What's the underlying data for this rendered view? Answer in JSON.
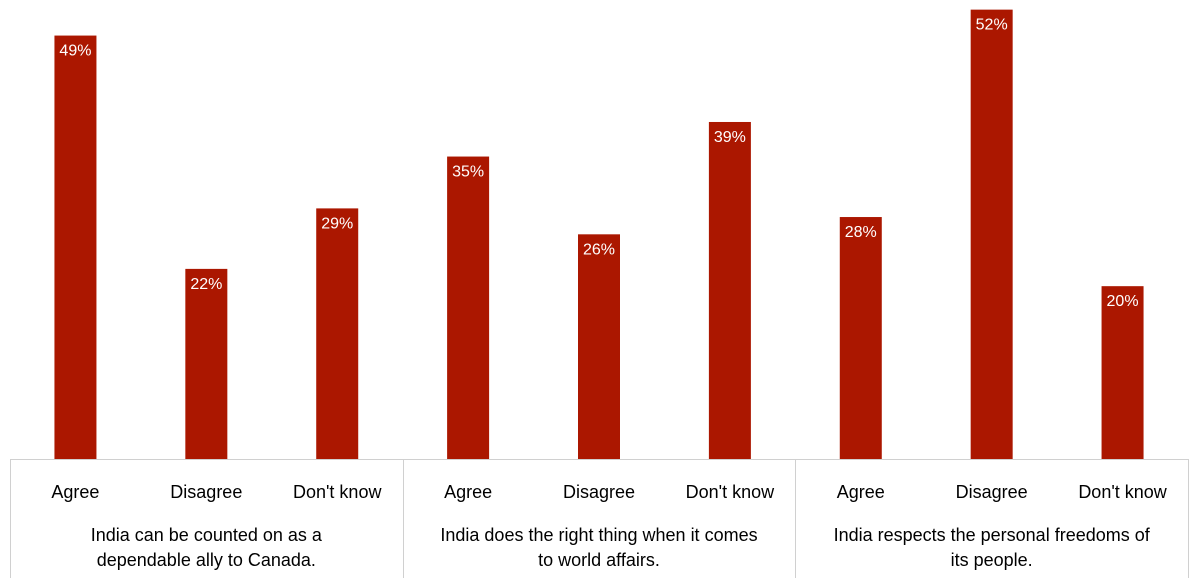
{
  "chart_data": {
    "type": "bar",
    "title": "",
    "xlabel": "",
    "ylabel": "",
    "ylim": [
      0,
      53
    ],
    "grid": false,
    "legend": "none",
    "bar_color": "#ab1700",
    "value_suffix": "%",
    "groups": [
      {
        "label_lines": [
          "India can be counted on as a",
          "dependable ally to Canada."
        ],
        "categories": [
          "Agree",
          "Disagree",
          "Don't know"
        ],
        "values": [
          49,
          22,
          29
        ]
      },
      {
        "label_lines": [
          "India does the right thing when it comes",
          "to world affairs."
        ],
        "categories": [
          "Agree",
          "Disagree",
          "Don't know"
        ],
        "values": [
          35,
          26,
          39
        ]
      },
      {
        "label_lines": [
          "India respects the personal freedoms of",
          "its people."
        ],
        "categories": [
          "Agree",
          "Disagree",
          "Don't know"
        ],
        "values": [
          28,
          52,
          20
        ]
      }
    ]
  }
}
